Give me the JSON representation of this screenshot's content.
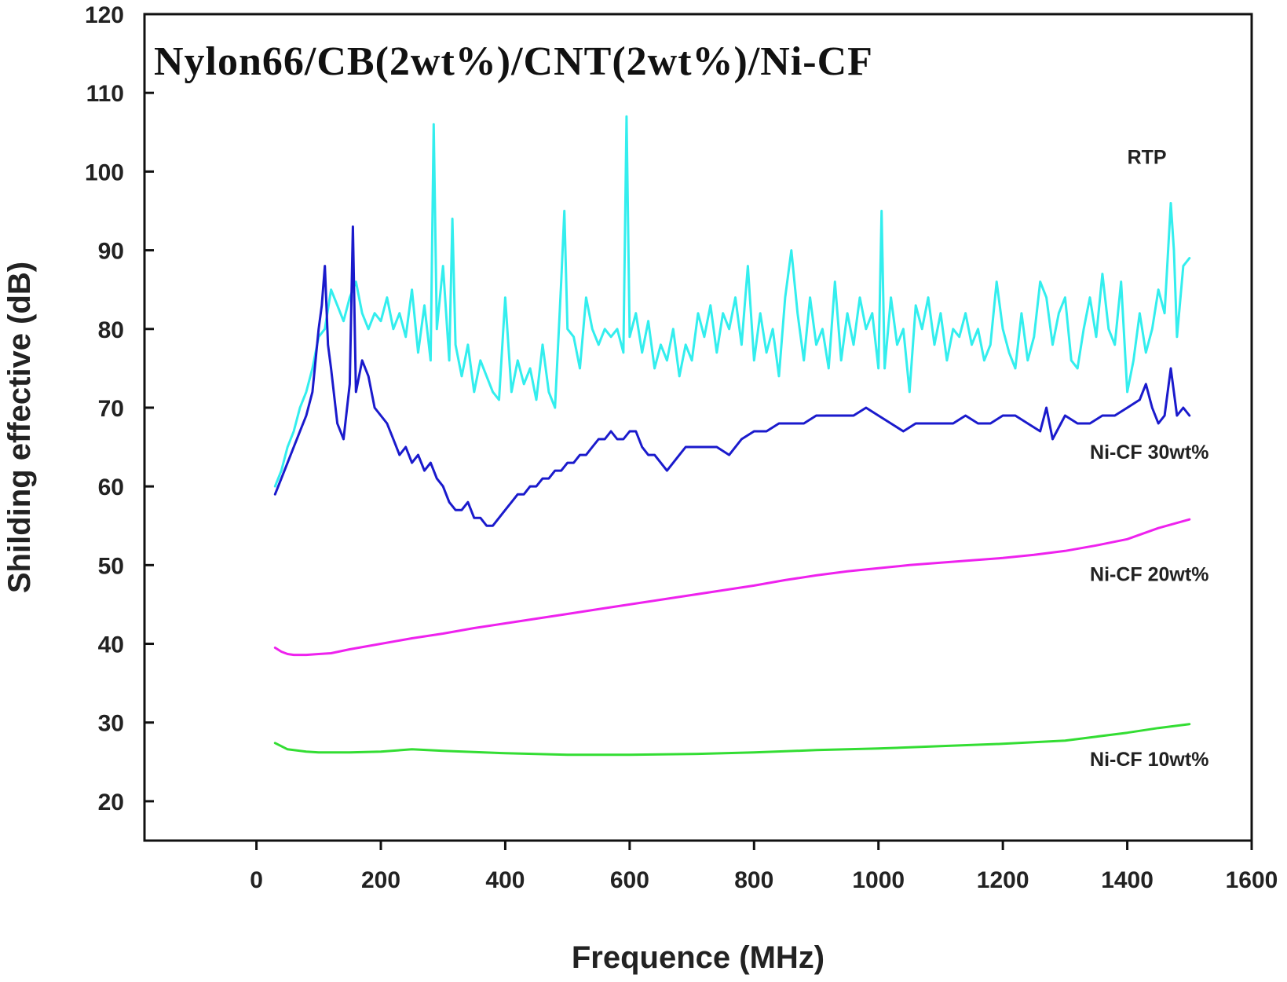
{
  "chart_data": {
    "type": "line",
    "title": "Nylon66/CB(2wt%)/CNT(2wt%)/Ni-CF",
    "xlabel": "Frequence (MHz)",
    "ylabel": "Shilding effective (dB)",
    "xlim": [
      -180,
      1600
    ],
    "ylim": [
      15,
      120
    ],
    "xticks": [
      "0",
      "200",
      "400",
      "600",
      "800",
      "1000",
      "1200",
      "1400",
      "1600"
    ],
    "xtick_values": [
      0,
      200,
      400,
      600,
      800,
      1000,
      1200,
      1400,
      1600
    ],
    "yticks": [
      "20",
      "30",
      "40",
      "50",
      "60",
      "70",
      "80",
      "90",
      "100",
      "110",
      "120"
    ],
    "ytick_values": [
      20,
      30,
      40,
      50,
      60,
      70,
      80,
      90,
      100,
      110,
      120
    ],
    "grid": false,
    "series": [
      {
        "name": "RTP",
        "color": "#33eeee",
        "label_anchor": [
          1400,
          101
        ],
        "x": [
          30,
          40,
          50,
          60,
          70,
          80,
          90,
          100,
          110,
          120,
          130,
          140,
          150,
          160,
          170,
          180,
          190,
          200,
          210,
          220,
          230,
          240,
          250,
          260,
          270,
          280,
          285,
          290,
          300,
          310,
          315,
          320,
          330,
          340,
          350,
          360,
          370,
          380,
          390,
          400,
          410,
          420,
          430,
          440,
          450,
          460,
          470,
          480,
          490,
          495,
          500,
          510,
          520,
          530,
          540,
          550,
          560,
          570,
          580,
          590,
          595,
          600,
          610,
          620,
          630,
          640,
          650,
          660,
          670,
          680,
          690,
          700,
          710,
          720,
          730,
          740,
          750,
          760,
          770,
          780,
          790,
          800,
          810,
          820,
          830,
          840,
          850,
          860,
          870,
          880,
          890,
          900,
          910,
          920,
          930,
          940,
          950,
          960,
          970,
          980,
          990,
          1000,
          1005,
          1010,
          1020,
          1030,
          1040,
          1050,
          1060,
          1070,
          1080,
          1090,
          1100,
          1110,
          1120,
          1130,
          1140,
          1150,
          1160,
          1170,
          1180,
          1190,
          1200,
          1210,
          1220,
          1230,
          1240,
          1250,
          1260,
          1270,
          1280,
          1290,
          1300,
          1310,
          1320,
          1330,
          1340,
          1350,
          1360,
          1370,
          1380,
          1390,
          1400,
          1410,
          1420,
          1430,
          1440,
          1450,
          1460,
          1470,
          1475,
          1480,
          1490,
          1500
        ],
        "y": [
          60,
          62,
          65,
          67,
          70,
          72,
          75,
          79,
          80,
          85,
          83,
          81,
          84,
          86,
          82,
          80,
          82,
          81,
          84,
          80,
          82,
          79,
          85,
          77,
          83,
          76,
          106,
          80,
          88,
          76,
          94,
          78,
          74,
          78,
          72,
          76,
          74,
          72,
          71,
          84,
          72,
          76,
          73,
          75,
          71,
          78,
          72,
          70,
          86,
          95,
          80,
          79,
          75,
          84,
          80,
          78,
          80,
          79,
          80,
          77,
          107,
          79,
          82,
          77,
          81,
          75,
          78,
          76,
          80,
          74,
          78,
          76,
          82,
          79,
          83,
          77,
          82,
          80,
          84,
          78,
          88,
          76,
          82,
          77,
          80,
          74,
          84,
          90,
          82,
          76,
          84,
          78,
          80,
          75,
          86,
          76,
          82,
          78,
          84,
          80,
          82,
          75,
          95,
          75,
          84,
          78,
          80,
          72,
          83,
          80,
          84,
          78,
          82,
          76,
          80,
          79,
          82,
          78,
          80,
          76,
          78,
          86,
          80,
          77,
          75,
          82,
          76,
          79,
          86,
          84,
          78,
          82,
          84,
          76,
          75,
          80,
          84,
          79,
          87,
          80,
          78,
          86,
          72,
          76,
          82,
          77,
          80,
          85,
          82,
          96,
          90,
          79,
          88,
          89
        ]
      },
      {
        "name": "Ni-CF 30wt%",
        "color": "#1a1acc",
        "label_anchor": [
          1340,
          63.5
        ],
        "x": [
          30,
          40,
          50,
          60,
          70,
          80,
          90,
          100,
          105,
          110,
          115,
          120,
          130,
          140,
          150,
          155,
          160,
          170,
          180,
          190,
          200,
          210,
          220,
          230,
          240,
          250,
          260,
          270,
          280,
          290,
          300,
          310,
          320,
          330,
          340,
          350,
          360,
          370,
          380,
          390,
          400,
          410,
          420,
          430,
          440,
          450,
          460,
          470,
          480,
          490,
          500,
          510,
          520,
          530,
          540,
          550,
          560,
          570,
          580,
          590,
          600,
          610,
          620,
          630,
          640,
          650,
          660,
          670,
          680,
          690,
          700,
          720,
          740,
          760,
          780,
          800,
          820,
          840,
          860,
          880,
          900,
          920,
          940,
          960,
          980,
          1000,
          1020,
          1040,
          1060,
          1080,
          1100,
          1120,
          1140,
          1160,
          1180,
          1200,
          1220,
          1240,
          1260,
          1270,
          1280,
          1300,
          1320,
          1340,
          1360,
          1380,
          1400,
          1420,
          1430,
          1440,
          1450,
          1460,
          1470,
          1480,
          1490,
          1500
        ],
        "y": [
          59,
          61,
          63,
          65,
          67,
          69,
          72,
          80,
          83,
          88,
          78,
          75,
          68,
          66,
          73,
          93,
          72,
          76,
          74,
          70,
          69,
          68,
          66,
          64,
          65,
          63,
          64,
          62,
          63,
          61,
          60,
          58,
          57,
          57,
          58,
          56,
          56,
          55,
          55,
          56,
          57,
          58,
          59,
          59,
          60,
          60,
          61,
          61,
          62,
          62,
          63,
          63,
          64,
          64,
          65,
          66,
          66,
          67,
          66,
          66,
          67,
          67,
          65,
          64,
          64,
          63,
          62,
          63,
          64,
          65,
          65,
          65,
          65,
          64,
          66,
          67,
          67,
          68,
          68,
          68,
          69,
          69,
          69,
          69,
          70,
          69,
          68,
          67,
          68,
          68,
          68,
          68,
          69,
          68,
          68,
          69,
          69,
          68,
          67,
          70,
          66,
          69,
          68,
          68,
          69,
          69,
          70,
          71,
          73,
          70,
          68,
          69,
          75,
          69,
          70,
          69
        ]
      },
      {
        "name": "Ni-CF 20wt%",
        "color": "#ee22ee",
        "label_anchor": [
          1340,
          48
        ],
        "x": [
          30,
          40,
          50,
          60,
          80,
          100,
          120,
          150,
          200,
          250,
          300,
          350,
          400,
          450,
          500,
          550,
          600,
          650,
          700,
          750,
          800,
          850,
          900,
          950,
          1000,
          1050,
          1100,
          1150,
          1200,
          1250,
          1300,
          1350,
          1400,
          1450,
          1500
        ],
        "y": [
          39.5,
          39,
          38.7,
          38.6,
          38.6,
          38.7,
          38.8,
          39.3,
          40,
          40.7,
          41.3,
          42,
          42.6,
          43.2,
          43.8,
          44.4,
          45,
          45.6,
          46.2,
          46.8,
          47.4,
          48.1,
          48.7,
          49.2,
          49.6,
          50,
          50.3,
          50.6,
          50.9,
          51.3,
          51.8,
          52.5,
          53.3,
          54.7,
          55.8
        ]
      },
      {
        "name": "Ni-CF 10wt%",
        "color": "#33dd33",
        "label_anchor": [
          1340,
          24.5
        ],
        "x": [
          30,
          50,
          80,
          100,
          150,
          200,
          250,
          300,
          400,
          500,
          600,
          700,
          800,
          900,
          1000,
          1100,
          1200,
          1300,
          1350,
          1400,
          1450,
          1500
        ],
        "y": [
          27.4,
          26.6,
          26.3,
          26.2,
          26.2,
          26.3,
          26.6,
          26.4,
          26.1,
          25.9,
          25.9,
          26,
          26.2,
          26.5,
          26.7,
          27,
          27.3,
          27.7,
          28.2,
          28.7,
          29.3,
          29.8
        ]
      }
    ]
  }
}
